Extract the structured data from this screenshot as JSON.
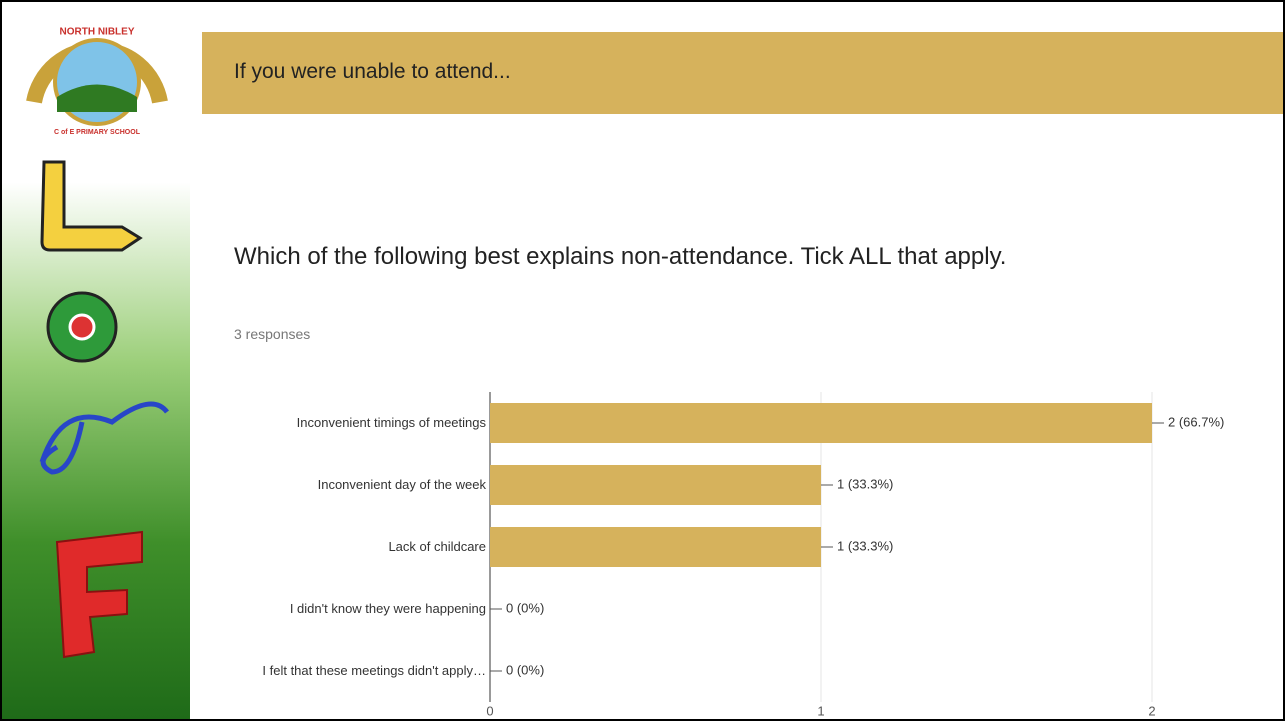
{
  "logo": {
    "top": "NORTH NIBLEY",
    "bottom": "C of E PRIMARY SCHOOL"
  },
  "header": {
    "title": "If you were unable to attend..."
  },
  "chart_data": {
    "type": "bar",
    "orientation": "horizontal",
    "title": "Which of the following best explains non-attendance. Tick ALL that apply.",
    "subtitle": "3 responses",
    "categories": [
      "Inconvenient timings of meetings",
      "Inconvenient day of the week",
      "Lack of childcare",
      "I didn't know they were happening",
      "I felt that these meetings didn't apply…"
    ],
    "values": [
      2,
      1,
      1,
      0,
      0
    ],
    "value_labels": [
      "2 (66.7%)",
      "1 (33.3%)",
      "1 (33.3%)",
      "0 (0%)",
      "0 (0%)"
    ],
    "color": "#d6b25c",
    "xlim": [
      0,
      2
    ],
    "xticks": [
      0,
      1,
      2
    ],
    "grid": true
  }
}
